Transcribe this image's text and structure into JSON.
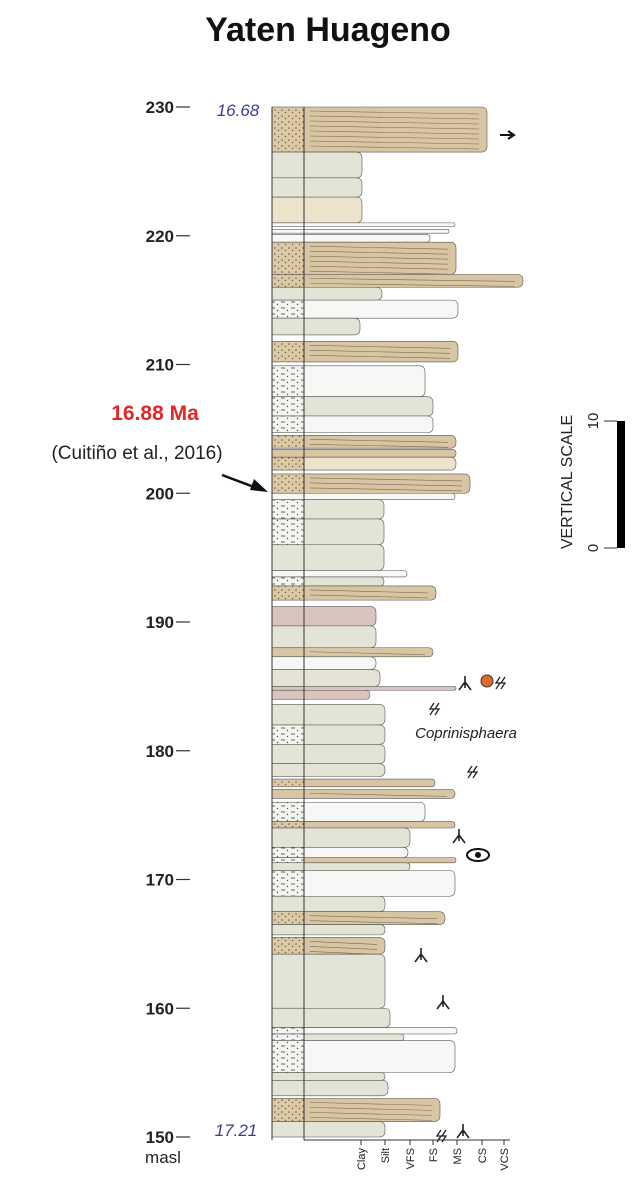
{
  "title": "Yaten Huageno",
  "axis": {
    "ticks": [
      150,
      160,
      170,
      180,
      190,
      200,
      210,
      220,
      230
    ],
    "unit": "masl"
  },
  "ages": {
    "top": "16.68",
    "bottom": "17.21"
  },
  "annotation": {
    "age": "16.88 Ma",
    "source": "(Cuitiño et al., 2016)"
  },
  "trace_fossil": "Coprinisphaera",
  "grain_sizes": [
    "Clay",
    "Silt",
    "VFS",
    "FS",
    "MS",
    "CS",
    "VCS"
  ],
  "vertical_scale": {
    "label": "VERTICAL SCALE",
    "ticks": [
      0,
      10
    ]
  }
}
